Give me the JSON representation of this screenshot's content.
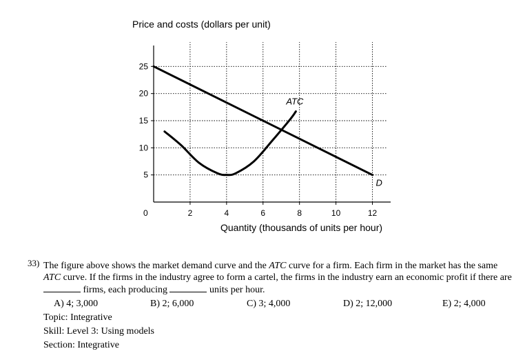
{
  "chart_data": {
    "type": "line",
    "ylabel": "Price and costs (dollars per unit)",
    "xlabel": "Quantity (thousands of units per hour)",
    "origin_label": "0",
    "xlim": [
      0,
      13
    ],
    "ylim": [
      0,
      30
    ],
    "x_ticks": [
      2,
      4,
      6,
      8,
      10,
      12
    ],
    "y_ticks": [
      5,
      10,
      15,
      20,
      25
    ],
    "grid": true,
    "series": [
      {
        "name": "D",
        "label_italic": true,
        "x": [
          0,
          12
        ],
        "y": [
          25,
          5
        ]
      },
      {
        "name": "ATC",
        "label_italic": true,
        "x": [
          0.6,
          1.5,
          2.5,
          3.5,
          4.0,
          4.5,
          5.5,
          6.5,
          7.5,
          7.8
        ],
        "y": [
          13,
          10.5,
          7.2,
          5.3,
          5,
          5.3,
          7.5,
          11.3,
          15.3,
          16.7
        ]
      }
    ]
  },
  "question": {
    "number": "33)",
    "text_parts": [
      "The figure above shows the market demand curve and the ",
      "ATC",
      " curve for a firm. Each firm in the market has the same ",
      "ATC",
      " curve. If the firms in the industry agree to form a cartel, the firms in the industry earn an economic profit if there are ",
      " firms, each producing ",
      " units per hour."
    ],
    "choices": [
      "A) 4; 3,000",
      "B) 2; 6,000",
      "C) 3; 4,000",
      "D) 2; 12,000",
      "E) 2; 4,000"
    ],
    "topic": "Topic: Integrative",
    "skill": "Skill: Level 3: Using models",
    "section": "Section: Integrative"
  }
}
